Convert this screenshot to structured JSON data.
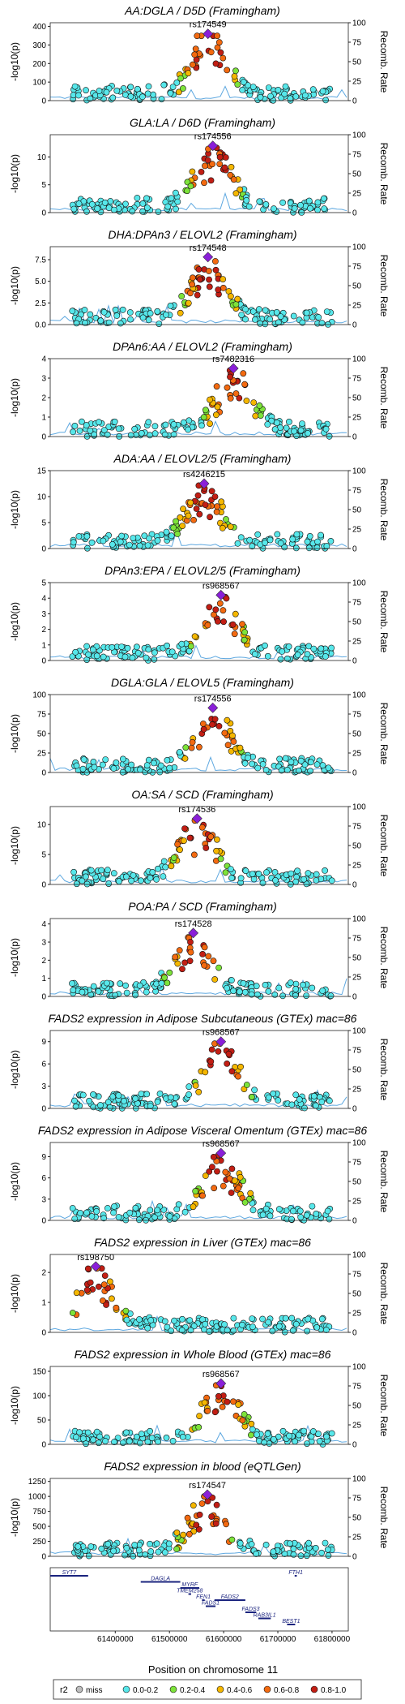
{
  "figure": {
    "xlabel": "Position on chromosome 11",
    "xticks": [
      "61400000",
      "61500000",
      "61600000",
      "61700000",
      "61800000"
    ],
    "left_axis_label": "-log10(p)",
    "right_axis_label": "Recomb. Rate",
    "right_ticks": [
      "0",
      "25",
      "50",
      "75",
      "100"
    ],
    "legend": {
      "title": "r2",
      "items": [
        {
          "label": "miss",
          "color": "#bdbdbd"
        },
        {
          "label": "0.0-0.2",
          "color": "#57e7ea"
        },
        {
          "label": "0.2-0.4",
          "color": "#7de33a"
        },
        {
          "label": "0.4-0.6",
          "color": "#f5b700"
        },
        {
          "label": "0.6-0.8",
          "color": "#f36a10"
        },
        {
          "label": "0.8-1.0",
          "color": "#c21e14"
        }
      ]
    },
    "lead_color": "#8a1fd8",
    "recomb_color": "#5ea8e0"
  },
  "chart_data": [
    {
      "type": "scatter",
      "title": "AA:DGLA / D5D (Framingham)",
      "lead_snp": "rs174549",
      "lead_pos": 61571000,
      "lead_logp": 360,
      "ylim": [
        0,
        420
      ],
      "yticks": [
        "0",
        "100",
        "200",
        "300",
        "400"
      ]
    },
    {
      "type": "scatter",
      "title": "GLA:LA / D6D (Framingham)",
      "lead_snp": "rs174556",
      "lead_pos": 61580000,
      "lead_logp": 12,
      "ylim": [
        0,
        14
      ],
      "yticks": [
        "0",
        "5",
        "10"
      ]
    },
    {
      "type": "scatter",
      "title": "DHA:DPAn3 / ELOVL2 (Framingham)",
      "lead_snp": "rs174548",
      "lead_pos": 61571000,
      "lead_logp": 7.8,
      "ylim": [
        0,
        9
      ],
      "yticks": [
        "0.0",
        "2.5",
        "5.0",
        "7.5"
      ]
    },
    {
      "type": "scatter",
      "title": "DPAn6:AA / ELOVL2 (Framingham)",
      "lead_snp": "rs7482316",
      "lead_pos": 61618000,
      "lead_logp": 3.5,
      "ylim": [
        0,
        4
      ],
      "yticks": [
        "0",
        "1",
        "2",
        "3",
        "4"
      ]
    },
    {
      "type": "scatter",
      "title": "ADA:AA / ELOVL2/5 (Framingham)",
      "lead_snp": "rs4246215",
      "lead_pos": 61564000,
      "lead_logp": 12.5,
      "ylim": [
        0,
        15
      ],
      "yticks": [
        "0",
        "5",
        "10",
        "15"
      ]
    },
    {
      "type": "scatter",
      "title": "DPAn3:EPA / ELOVL2/5 (Framingham)",
      "lead_snp": "rs968567",
      "lead_pos": 61595000,
      "lead_logp": 4.2,
      "ylim": [
        0,
        5
      ],
      "yticks": [
        "0",
        "1",
        "2",
        "3",
        "4",
        "5"
      ]
    },
    {
      "type": "scatter",
      "title": "DGLA:GLA / ELOVL5 (Framingham)",
      "lead_snp": "rs174556",
      "lead_pos": 61580000,
      "lead_logp": 83,
      "ylim": [
        0,
        100
      ],
      "yticks": [
        "0",
        "25",
        "50",
        "75",
        "100"
      ]
    },
    {
      "type": "scatter",
      "title": "OA:SA / SCD (Framingham)",
      "lead_snp": "rs174536",
      "lead_pos": 61551000,
      "lead_logp": 11,
      "ylim": [
        0,
        13
      ],
      "yticks": [
        "0",
        "5",
        "10"
      ]
    },
    {
      "type": "scatter",
      "title": "POA:PA / SCD (Framingham)",
      "lead_snp": "rs174528",
      "lead_pos": 61544000,
      "lead_logp": 3.5,
      "ylim": [
        0,
        4.3
      ],
      "yticks": [
        "0",
        "1",
        "2",
        "3",
        "4"
      ]
    },
    {
      "type": "scatter",
      "title": "FADS2 expression in Adipose Subcutaneous (GTEx) mac=86",
      "lead_snp": "rs968567",
      "lead_pos": 61595000,
      "lead_logp": 9,
      "ylim": [
        0,
        10.5
      ],
      "yticks": [
        "0",
        "3",
        "6",
        "9"
      ]
    },
    {
      "type": "scatter",
      "title": "FADS2 expression in Adipose Visceral Omentum (GTEx) mac=86",
      "lead_snp": "rs968567",
      "lead_pos": 61595000,
      "lead_logp": 9.5,
      "ylim": [
        0,
        11
      ],
      "yticks": [
        "0",
        "3",
        "6",
        "9"
      ]
    },
    {
      "type": "scatter",
      "title": "FADS2 expression in Liver (GTEx) mac=86",
      "lead_snp": "rs198750",
      "lead_pos": 61364000,
      "lead_logp": 2.2,
      "ylim": [
        0,
        2.6
      ],
      "yticks": [
        "0",
        "1",
        "2"
      ]
    },
    {
      "type": "scatter",
      "title": "FADS2 expression in Whole Blood (GTEx) mac=86",
      "lead_snp": "rs968567",
      "lead_pos": 61595000,
      "lead_logp": 125,
      "ylim": [
        0,
        160
      ],
      "yticks": [
        "0",
        "50",
        "100",
        "150"
      ]
    },
    {
      "type": "scatter",
      "title": "FADS2 expression in blood (eQTLGen)",
      "lead_snp": "rs174547",
      "lead_pos": 61570000,
      "lead_logp": 1030,
      "ylim": [
        0,
        1300
      ],
      "yticks": [
        "0",
        "250",
        "500",
        "750",
        "1000",
        "1250"
      ]
    }
  ],
  "genes": [
    {
      "name": "SYT7",
      "start": 61280000,
      "end": 61350000,
      "row": 0
    },
    {
      "name": "DAGLA",
      "start": 61447000,
      "end": 61520000,
      "row": 1
    },
    {
      "name": "MYRF",
      "start": 61520000,
      "end": 61555000,
      "row": 2
    },
    {
      "name": "TMEM258",
      "start": 61535000,
      "end": 61540000,
      "row": 3
    },
    {
      "name": "FEN1",
      "start": 61560000,
      "end": 61565000,
      "row": 4
    },
    {
      "name": "FADS1",
      "start": 61567000,
      "end": 61585000,
      "row": 5
    },
    {
      "name": "FADS2",
      "start": 61583000,
      "end": 61640000,
      "row": 4
    },
    {
      "name": "FADS3",
      "start": 61640000,
      "end": 61660000,
      "row": 6
    },
    {
      "name": "RAB3IL1",
      "start": 61664000,
      "end": 61687000,
      "row": 7
    },
    {
      "name": "BEST1",
      "start": 61717000,
      "end": 61732000,
      "row": 8
    },
    {
      "name": "FTH1",
      "start": 61731000,
      "end": 61735000,
      "row": 0
    }
  ]
}
